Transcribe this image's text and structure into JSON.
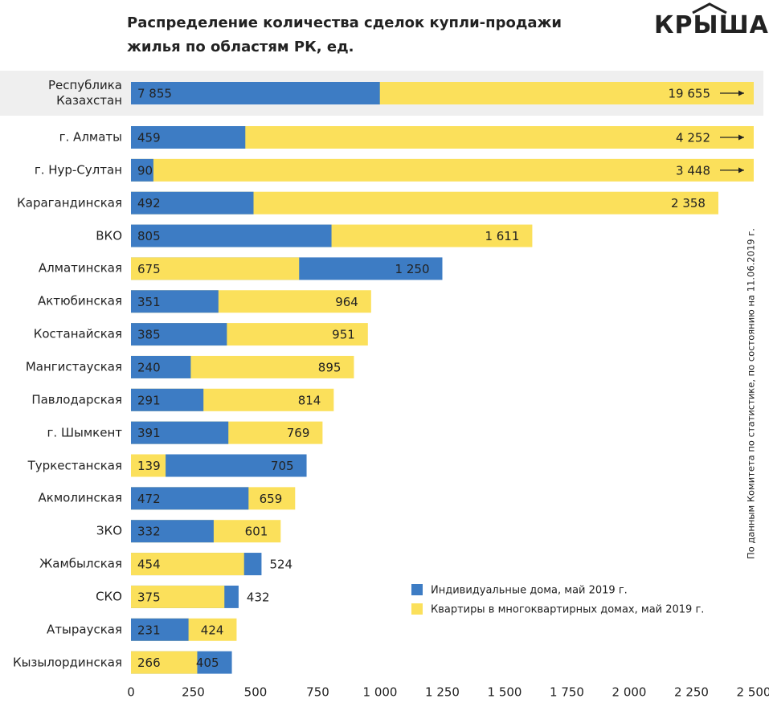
{
  "chart_data": {
    "type": "bar",
    "orientation": "horizontal",
    "overlap": true,
    "title": "Распределение количества сделок купли-продажи жилья по областям РК, ед.",
    "logo": "КРЫША",
    "note": "По данным Комитета по статистике, по состоянию на 11.06.2019 г.",
    "categories": [
      "Республика Казахстан",
      "г. Алматы",
      "г. Нур-Султан",
      "Карагандинская",
      "ВКО",
      "Алматинская",
      "Актюбинская",
      "Костанайская",
      "Мангистауская",
      "Павлодарская",
      "г. Шымкент",
      "Туркестанская",
      "Акмолинская",
      "ЗКО",
      "Жамбылская",
      "СКО",
      "Атырауская",
      "Кызылординская"
    ],
    "series": [
      {
        "name": "Индивидуальные дома, май 2019 г.",
        "color": "#3d7cc4",
        "values": [
          7855,
          459,
          90,
          492,
          805,
          1250,
          351,
          385,
          240,
          291,
          391,
          705,
          472,
          332,
          524,
          432,
          231,
          405
        ],
        "value_labels": [
          "7 855",
          "459",
          "90",
          "492",
          "805",
          "1 250",
          "351",
          "385",
          "240",
          "291",
          "391",
          "705",
          "472",
          "332",
          "524",
          "432",
          "231",
          "405"
        ]
      },
      {
        "name": "Квартиры в многоквартирных домах, май 2019 г.",
        "color": "#fbe05b",
        "values": [
          19655,
          4252,
          3448,
          2358,
          1611,
          675,
          964,
          951,
          895,
          814,
          769,
          139,
          659,
          601,
          454,
          375,
          424,
          266
        ],
        "value_labels": [
          "19 655",
          "4 252",
          "3 448",
          "2 358",
          "1 611",
          "675",
          "964",
          "951",
          "895",
          "814",
          "769",
          "139",
          "659",
          "601",
          "454",
          "375",
          "424",
          "266"
        ]
      }
    ],
    "xlim": [
      0,
      2500
    ],
    "xticks": [
      0,
      250,
      500,
      750,
      {
        "value": 1000,
        "label": "1 000"
      },
      {
        "value": 1250,
        "label": "1 250"
      },
      {
        "value": 1500,
        "label": "1 500"
      },
      {
        "value": 1750,
        "label": "1 750"
      },
      {
        "value": 2000,
        "label": "2 000"
      },
      {
        "value": 2250,
        "label": "2 250"
      },
      {
        "value": 2500,
        "label": "2 500"
      }
    ],
    "legend": "lower right",
    "grid": false
  }
}
